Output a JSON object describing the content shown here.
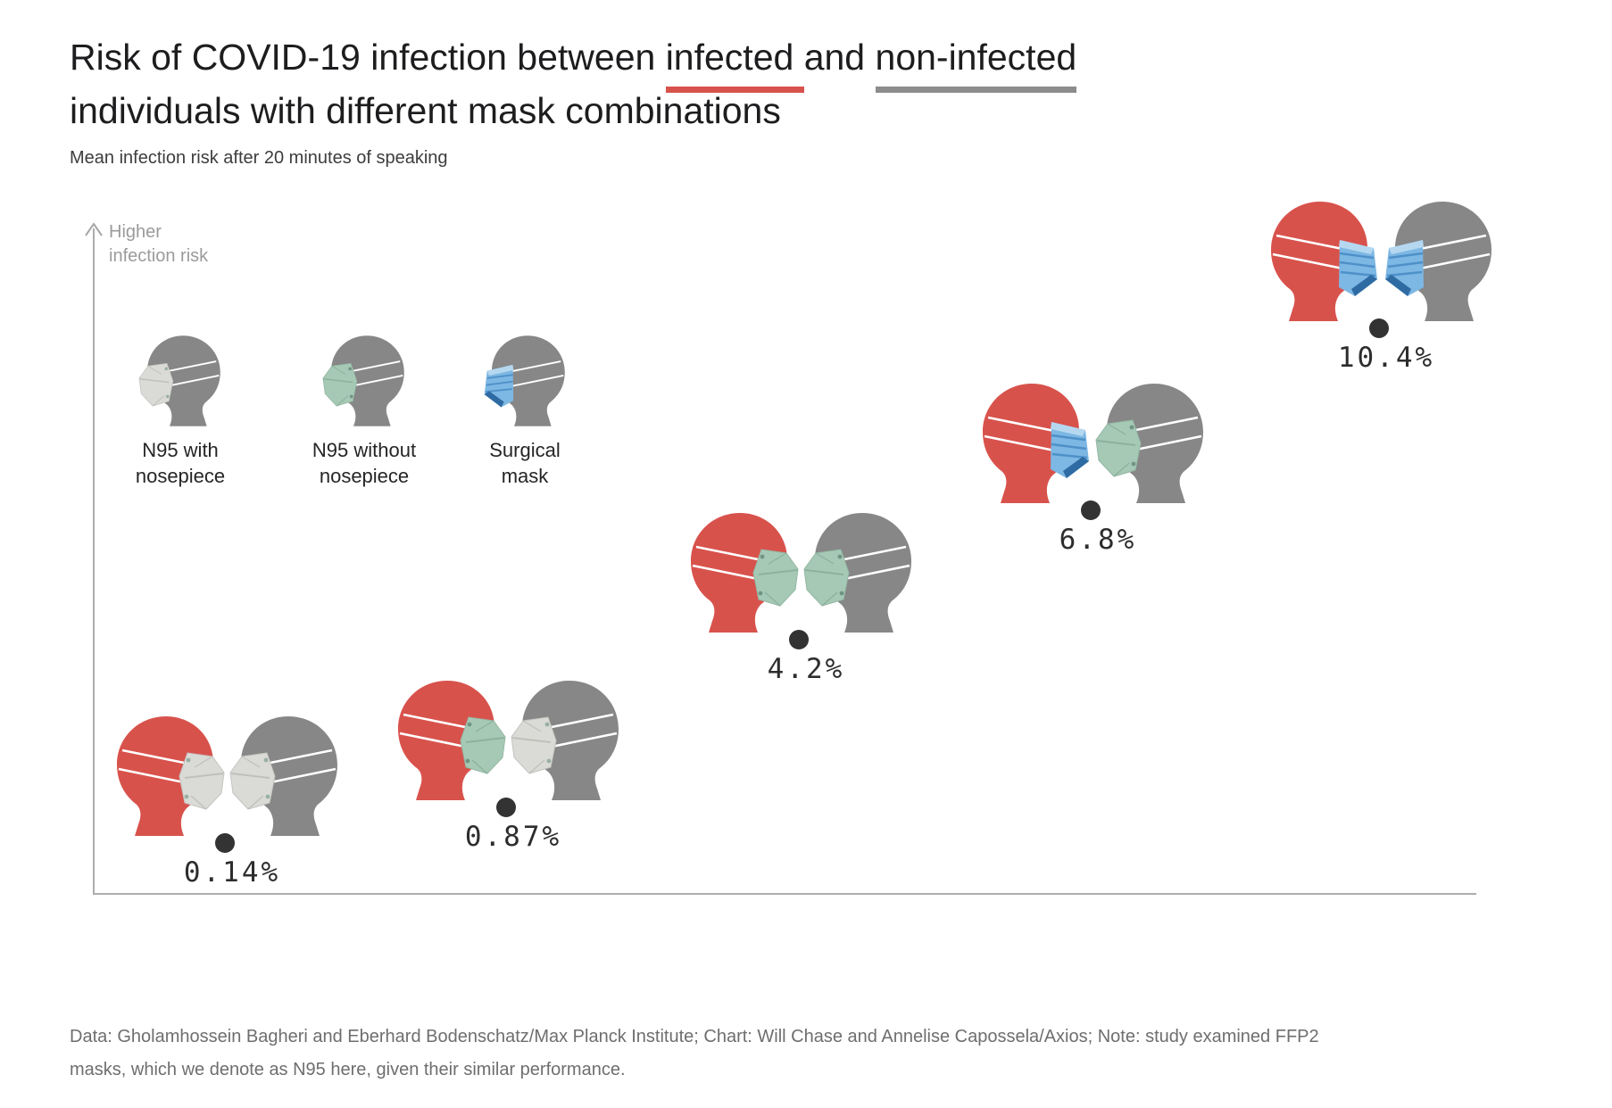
{
  "header": {
    "title_part1": "Risk of COVID-19 infection between ",
    "title_infected": "infected ",
    "title_part2": "and ",
    "title_noninfected": "non-infected",
    "title_line2": "individuals with different mask combinations",
    "subtitle": "Mean infection risk after 20 minutes of speaking"
  },
  "axis": {
    "label_line1": "Higher",
    "label_line2": "infection risk"
  },
  "legend": {
    "items": [
      {
        "mask_id": "n95_white",
        "label_line1": "N95 with",
        "label_line2": "nosepiece"
      },
      {
        "mask_id": "n95_green",
        "label_line1": "N95 without",
        "label_line2": "nosepiece"
      },
      {
        "mask_id": "surgical",
        "label_line1": "Surgical",
        "label_line2": "mask"
      }
    ]
  },
  "chart_data": {
    "type": "scatter",
    "title": "Risk of COVID-19 infection between infected and non-infected individuals with different mask combinations",
    "subtitle": "Mean infection risk after 20 minutes of speaking",
    "ylabel": "Higher infection risk",
    "y_unit": "percent mean infection risk after 20 minutes of speaking",
    "legend_entries": [
      "N95 with nosepiece",
      "N95 without nosepiece",
      "Surgical mask"
    ],
    "legend_position": "top-left inside plot",
    "grid": false,
    "points": [
      {
        "value": 0.14,
        "label": "0.14%",
        "infected_mask": "N95 with nosepiece",
        "noninfected_mask": "N95 with nosepiece",
        "infected_mask_id": "n95_white",
        "noninfected_mask_id": "n95_white"
      },
      {
        "value": 0.87,
        "label": "0.87%",
        "infected_mask": "N95 without nosepiece",
        "noninfected_mask": "N95 with nosepiece",
        "infected_mask_id": "n95_green",
        "noninfected_mask_id": "n95_white"
      },
      {
        "value": 4.2,
        "label": "4.2%",
        "infected_mask": "N95 without nosepiece",
        "noninfected_mask": "N95 without nosepiece",
        "infected_mask_id": "n95_green",
        "noninfected_mask_id": "n95_green"
      },
      {
        "value": 6.8,
        "label": "6.8%",
        "infected_mask": "Surgical mask",
        "noninfected_mask": "N95 without nosepiece",
        "infected_mask_id": "surgical",
        "noninfected_mask_id": "n95_green"
      },
      {
        "value": 10.4,
        "label": "10.4%",
        "infected_mask": "Surgical mask",
        "noninfected_mask": "Surgical mask",
        "infected_mask_id": "surgical",
        "noninfected_mask_id": "surgical"
      }
    ]
  },
  "colors": {
    "infected_red": "#d8524c",
    "noninfected_gray": "#878787",
    "underline_red": "#d8524c",
    "underline_gray": "#8c8c8c",
    "axis_gray": "#adadad",
    "dot": "#333333"
  },
  "mask_palettes": {
    "n95_white": {
      "base": "#dadad7",
      "edge": "#c4c4c0",
      "line": "#c0c0bb",
      "dot": "#9ab0a6"
    },
    "n95_green": {
      "base": "#a6c9b5",
      "edge": "#93b7a3",
      "line": "#8cb19d",
      "dot": "#6f9484"
    },
    "surgical": {
      "top": "#b5d8f0",
      "body": "#7db7e3",
      "pleat": "#4e90c9",
      "fold": "#2f6ba3"
    }
  },
  "footer": {
    "text": "Data: Gholamhossein Bagheri and Eberhard Bodenschatz/Max Planck Institute; Chart: Will Chase and Annelise Capossela/Axios; Note: study examined FFP2 masks, which we denote as N95 here, given their similar performance."
  }
}
